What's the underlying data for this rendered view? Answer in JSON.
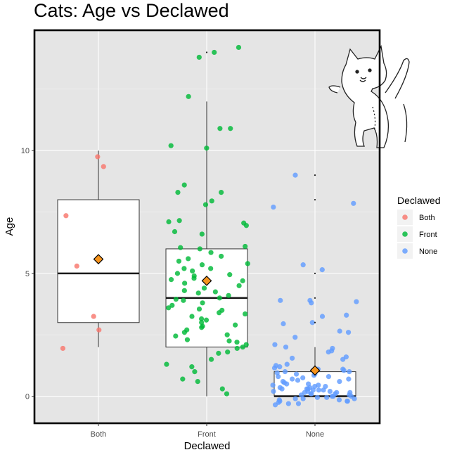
{
  "chart_data": {
    "type": "boxplot",
    "title": "Cats: Age vs Declawed",
    "xlabel": "Declawed",
    "ylabel": "Age",
    "categories": [
      "Both",
      "Front",
      "None"
    ],
    "ylim": [
      -1.1,
      14.9
    ],
    "yticks": [
      0,
      5,
      10
    ],
    "grid": true,
    "legend": {
      "title": "Declawed",
      "placement": "right",
      "entries": [
        {
          "label": "Both",
          "color": "#f8766d"
        },
        {
          "label": "Front",
          "color": "#00ba38"
        },
        {
          "label": "None",
          "color": "#619cff"
        }
      ]
    },
    "boxes": [
      {
        "category": "Both",
        "q1": 3,
        "median": 5,
        "q3": 8,
        "whisker_low": 2,
        "whisker_high": 10,
        "mean": 5.58,
        "outliers": []
      },
      {
        "category": "Front",
        "q1": 2,
        "median": 4,
        "q3": 6,
        "whisker_low": 0,
        "whisker_high": 12,
        "mean": 4.7,
        "outliers": [
          14
        ]
      },
      {
        "category": "None",
        "q1": 0,
        "median": 0,
        "q3": 1,
        "whisker_low": 0,
        "whisker_high": 2,
        "mean": 1.05,
        "outliers": [
          3,
          4,
          5,
          8,
          9
        ]
      }
    ],
    "points": {
      "Both": [
        9.75,
        9.35,
        7.35,
        5.3,
        3.25,
        2.7,
        1.95
      ],
      "Front": [
        14.2,
        14.0,
        13.8,
        12.2,
        10.9,
        10.9,
        10.2,
        10.1,
        8.6,
        8.3,
        8.3,
        7.95,
        7.8,
        7.15,
        7.1,
        7.05,
        6.95,
        6.7,
        6.6,
        6.1,
        6.05,
        6.0,
        5.85,
        5.7,
        5.6,
        5.5,
        5.4,
        5.35,
        5.2,
        5.2,
        5.1,
        5.0,
        4.95,
        4.9,
        4.8,
        4.75,
        4.7,
        4.6,
        4.5,
        4.4,
        4.3,
        4.25,
        4.2,
        4.1,
        4.0,
        3.95,
        3.9,
        3.8,
        3.7,
        3.6,
        3.55,
        3.5,
        3.4,
        3.35,
        3.25,
        3.15,
        3.1,
        3.0,
        2.9,
        2.85,
        2.8,
        2.7,
        2.6,
        2.5,
        2.45,
        2.3,
        2.25,
        2.2,
        2.1,
        2.0,
        1.95,
        1.8,
        1.75,
        1.5,
        1.3,
        1.2,
        1.0,
        0.7,
        0.6,
        0.3,
        0.1
      ],
      "None": [
        9.0,
        7.85,
        7.7,
        5.35,
        5.15,
        3.9,
        3.9,
        3.85,
        3.8,
        3.3,
        3.25,
        3.0,
        2.95,
        2.65,
        2.6,
        2.4,
        2.1,
        2.0,
        1.95,
        1.85,
        1.8,
        1.6,
        1.55,
        1.5,
        1.3,
        1.25,
        1.2,
        1.15,
        1.1,
        1.1,
        1.05,
        1.0,
        1.0,
        0.95,
        0.9,
        0.85,
        0.8,
        0.75,
        0.7,
        0.65,
        0.6,
        0.55,
        0.5,
        0.45,
        0.4,
        0.35,
        0.3,
        0.3,
        0.25,
        0.2,
        0.2,
        0.15,
        0.1,
        0.1,
        0.05,
        0.0,
        0.0,
        -0.05,
        -0.1,
        -0.1,
        -0.15,
        -0.2,
        -0.2,
        -0.25,
        -0.3,
        -0.3,
        -0.35,
        0.25,
        0.35,
        0.15,
        0.45,
        0.05,
        -0.05,
        0.5,
        0.6,
        0.7,
        0.8,
        0.9,
        1.0,
        0.2,
        0.1,
        -0.1,
        -0.2,
        0.3,
        0.4,
        0.0,
        -0.15,
        0.15,
        0.25
      ]
    }
  }
}
